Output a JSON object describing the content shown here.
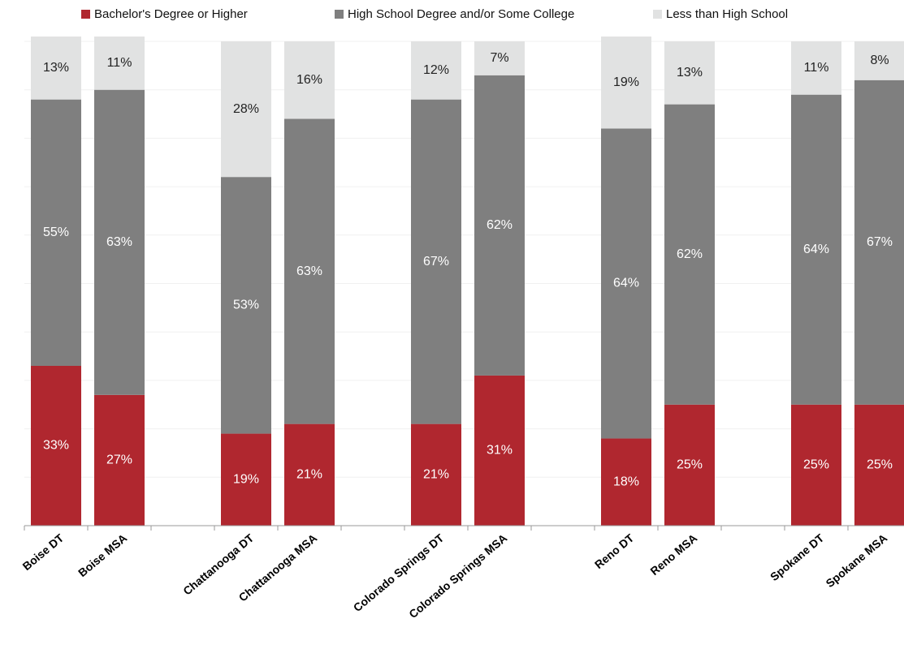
{
  "chart_data": {
    "type": "stacked-bar",
    "categories": [
      "Boise DT",
      "Boise MSA",
      null,
      "Chattanooga DT",
      "Chattanooga MSA",
      null,
      "Colorado Springs DT",
      "Colorado Springs MSA",
      null,
      "Reno DT",
      "Reno MSA",
      null,
      "Spokane DT",
      "Spokane MSA"
    ],
    "series": [
      {
        "name": "Bachelor's Degree or Higher",
        "color": "#b0272f",
        "label_color": "#ffffff",
        "values": [
          33,
          27,
          null,
          19,
          21,
          null,
          21,
          31,
          null,
          18,
          25,
          null,
          25,
          25
        ],
        "value_labels": [
          "33%",
          "27%",
          null,
          "19%",
          "21%",
          null,
          "21%",
          "31%",
          null,
          "18%",
          "25%",
          null,
          "25%",
          "25%"
        ]
      },
      {
        "name": "High School Degree and/or Some College",
        "color": "#7f7f7f",
        "label_color": "#ffffff",
        "values": [
          55,
          63,
          null,
          53,
          63,
          null,
          67,
          62,
          null,
          64,
          62,
          null,
          64,
          67
        ],
        "value_labels": [
          "55%",
          "63%",
          null,
          "53%",
          "63%",
          null,
          "67%",
          "62%",
          null,
          "64%",
          "62%",
          null,
          "64%",
          "67%"
        ]
      },
      {
        "name": "Less than High School",
        "color": "#e1e2e2",
        "label_color": "#222222",
        "values": [
          13,
          11,
          null,
          28,
          16,
          null,
          12,
          7,
          null,
          19,
          13,
          null,
          11,
          8
        ],
        "value_labels": [
          "13%",
          "11%",
          null,
          "28%",
          "16%",
          null,
          "12%",
          "7%",
          null,
          "19%",
          "13%",
          null,
          "11%",
          "8%"
        ]
      }
    ],
    "ylim": [
      0,
      100
    ],
    "yticks": [
      0,
      10,
      20,
      30,
      40,
      50,
      60,
      70,
      80,
      90,
      100
    ],
    "grid": true
  }
}
